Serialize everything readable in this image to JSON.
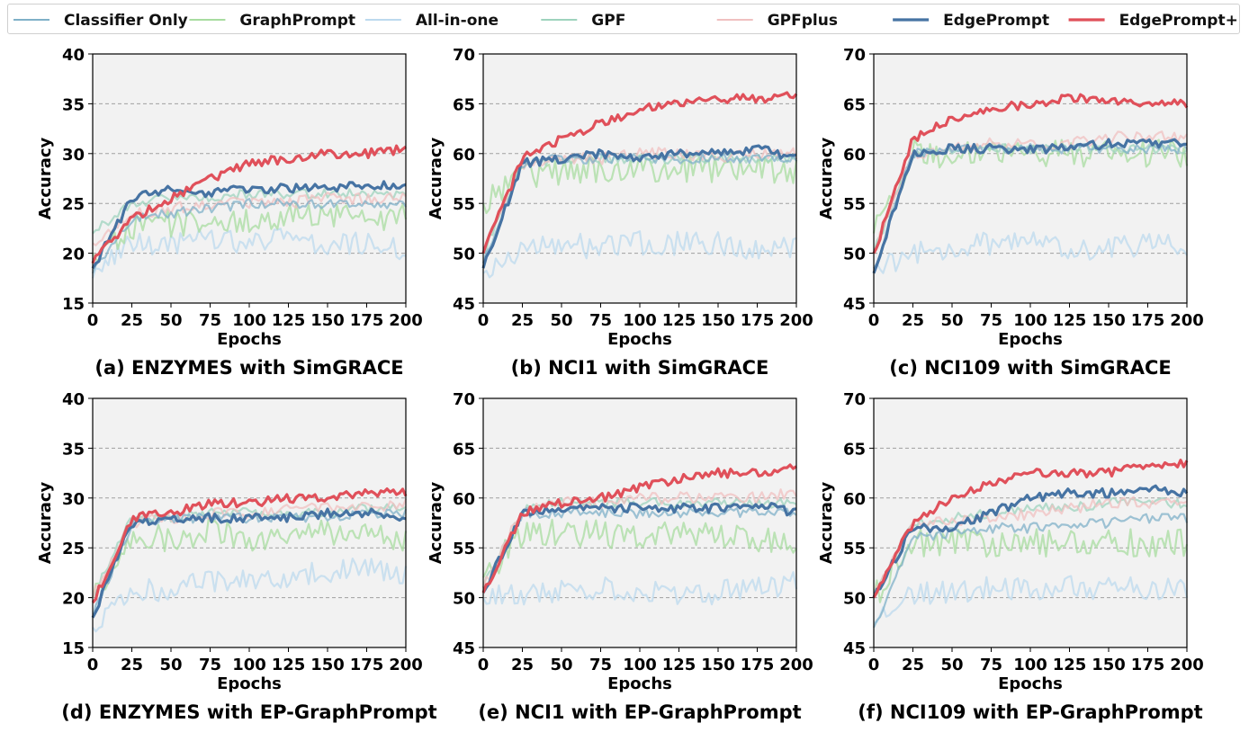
{
  "legend": [
    {
      "name": "Classifier Only",
      "color": "#7fb0c8"
    },
    {
      "name": "GraphPrompt",
      "color": "#a8dca0"
    },
    {
      "name": "All-in-one",
      "color": "#bcd9ee"
    },
    {
      "name": "GPF",
      "color": "#9ed3bd"
    },
    {
      "name": "GPFplus",
      "color": "#f0c0c0"
    },
    {
      "name": "EdgePrompt",
      "color": "#4673a3"
    },
    {
      "name": "EdgePrompt+",
      "color": "#e0505a"
    }
  ],
  "chart_data": [
    {
      "type": "line",
      "title": "(a) ENZYMES with SimGRACE",
      "xlabel": "Epochs",
      "ylabel": "Accuracy",
      "xlim": [
        0,
        200
      ],
      "ylim": [
        15,
        40
      ],
      "xticks": [
        0,
        25,
        50,
        75,
        100,
        125,
        150,
        175,
        200
      ],
      "yticks": [
        15,
        20,
        25,
        30,
        35,
        40
      ],
      "grid": "horizontal-dashed",
      "x": [
        0,
        25,
        50,
        75,
        100,
        125,
        150,
        175,
        200
      ],
      "series": [
        {
          "name": "Classifier Only",
          "values": [
            18,
            23.5,
            24,
            24.5,
            25,
            25,
            25,
            25,
            24.8
          ]
        },
        {
          "name": "GraphPrompt",
          "values": [
            20,
            22.5,
            23,
            23.5,
            23.5,
            23.8,
            24,
            23.8,
            23.5
          ]
        },
        {
          "name": "All-in-one",
          "values": [
            17.5,
            21,
            21,
            21.5,
            21,
            21.5,
            21,
            21,
            20.5
          ]
        },
        {
          "name": "GPF",
          "values": [
            22,
            25,
            25.5,
            25.5,
            26,
            26,
            26,
            26,
            26
          ]
        },
        {
          "name": "GPFplus",
          "values": [
            21,
            24,
            24.5,
            25,
            25,
            25,
            25.5,
            25.5,
            25.5
          ]
        },
        {
          "name": "EdgePrompt",
          "values": [
            18.5,
            25.5,
            26.5,
            26,
            26.5,
            26.5,
            26.5,
            27,
            26.5
          ]
        },
        {
          "name": "EdgePrompt+",
          "values": [
            19,
            23.5,
            25.5,
            27.5,
            29,
            29.5,
            30,
            30,
            30.5
          ]
        }
      ]
    },
    {
      "type": "line",
      "title": "(b) NCI1 with SimGRACE",
      "xlabel": "Epochs",
      "ylabel": "Accuracy",
      "xlim": [
        0,
        200
      ],
      "ylim": [
        45,
        70
      ],
      "xticks": [
        0,
        25,
        50,
        75,
        100,
        125,
        150,
        175,
        200
      ],
      "yticks": [
        45,
        50,
        55,
        60,
        65,
        70
      ],
      "grid": "horizontal-dashed",
      "x": [
        0,
        25,
        50,
        75,
        100,
        125,
        150,
        175,
        200
      ],
      "series": [
        {
          "name": "Classifier Only",
          "values": [
            49,
            59,
            59.5,
            59.5,
            59.5,
            59.5,
            59.5,
            59.5,
            59.5
          ]
        },
        {
          "name": "GraphPrompt",
          "values": [
            55,
            58,
            58,
            58.5,
            58.5,
            58.5,
            58.5,
            58.5,
            58
          ]
        },
        {
          "name": "All-in-one",
          "values": [
            48,
            50.5,
            51,
            50.5,
            51,
            51,
            51,
            50.5,
            50.5
          ]
        },
        {
          "name": "GPF",
          "values": [
            50,
            59,
            59.5,
            59.5,
            59.5,
            59.5,
            59.5,
            59.5,
            59.5
          ]
        },
        {
          "name": "GPFplus",
          "values": [
            50,
            59,
            59.5,
            59.5,
            60,
            60,
            59.5,
            60,
            60
          ]
        },
        {
          "name": "EdgePrompt",
          "values": [
            48.5,
            59,
            59.5,
            60,
            59.5,
            60,
            60,
            60.5,
            59.5
          ]
        },
        {
          "name": "EdgePrompt+",
          "values": [
            50,
            59.5,
            61.5,
            63,
            64.5,
            65,
            65.5,
            65.5,
            65.8
          ]
        }
      ]
    },
    {
      "type": "line",
      "title": "(c) NCI109 with SimGRACE",
      "xlabel": "Epochs",
      "ylabel": "Accuracy",
      "xlim": [
        0,
        200
      ],
      "ylim": [
        45,
        70
      ],
      "xticks": [
        0,
        25,
        50,
        75,
        100,
        125,
        150,
        175,
        200
      ],
      "yticks": [
        45,
        50,
        55,
        60,
        65,
        70
      ],
      "grid": "horizontal-dashed",
      "x": [
        0,
        25,
        50,
        75,
        100,
        125,
        150,
        175,
        200
      ],
      "series": [
        {
          "name": "Classifier Only",
          "values": [
            48.5,
            60,
            60.5,
            60.5,
            60.5,
            60.5,
            60.5,
            60.5,
            60.5
          ]
        },
        {
          "name": "GraphPrompt",
          "values": [
            52,
            60,
            60,
            60,
            60,
            60,
            60,
            60,
            60
          ]
        },
        {
          "name": "All-in-one",
          "values": [
            48,
            50,
            50.5,
            51,
            51,
            50.5,
            50.5,
            51,
            50.5
          ]
        },
        {
          "name": "GPF",
          "values": [
            50,
            60,
            60,
            60.5,
            60.5,
            60.5,
            60.5,
            60.5,
            60.5
          ]
        },
        {
          "name": "GPFplus",
          "values": [
            50,
            60,
            60.5,
            61,
            61,
            61,
            61.5,
            62,
            61.5
          ]
        },
        {
          "name": "EdgePrompt",
          "values": [
            48,
            60,
            60.5,
            60.5,
            60.5,
            60.5,
            61,
            61,
            61
          ]
        },
        {
          "name": "EdgePrompt+",
          "values": [
            50,
            61.5,
            63.5,
            64.5,
            65,
            65.5,
            65.5,
            65,
            65
          ]
        }
      ]
    },
    {
      "type": "line",
      "title": "(d) ENZYMES with EP-GraphPrompt",
      "xlabel": "Epochs",
      "ylabel": "Accuracy",
      "xlim": [
        0,
        200
      ],
      "ylim": [
        15,
        40
      ],
      "xticks": [
        0,
        25,
        50,
        75,
        100,
        125,
        150,
        175,
        200
      ],
      "yticks": [
        15,
        20,
        25,
        30,
        35,
        40
      ],
      "grid": "horizontal-dashed",
      "x": [
        0,
        25,
        50,
        75,
        100,
        125,
        150,
        175,
        200
      ],
      "series": [
        {
          "name": "Classifier Only",
          "values": [
            18,
            27.5,
            28,
            28,
            28,
            28,
            28,
            28.5,
            28.5
          ]
        },
        {
          "name": "GraphPrompt",
          "values": [
            20,
            26,
            26,
            26.5,
            26,
            26.5,
            26.5,
            26.5,
            26
          ]
        },
        {
          "name": "All-in-one",
          "values": [
            17,
            20.5,
            21,
            21.5,
            22,
            22,
            22.5,
            23,
            22.5
          ]
        },
        {
          "name": "GPF",
          "values": [
            20,
            28,
            28,
            28.5,
            28.5,
            28.5,
            28.5,
            29,
            29
          ]
        },
        {
          "name": "GPFplus",
          "values": [
            20,
            27.5,
            28,
            28.5,
            28.5,
            29,
            29,
            29,
            29.5
          ]
        },
        {
          "name": "EdgePrompt",
          "values": [
            18,
            27.5,
            28,
            28,
            28,
            28,
            28.5,
            28.5,
            28
          ]
        },
        {
          "name": "EdgePrompt+",
          "values": [
            19.5,
            28,
            28.5,
            29.5,
            29.5,
            30,
            30,
            30.5,
            30.5
          ]
        }
      ]
    },
    {
      "type": "line",
      "title": "(e) NCI1 with EP-GraphPrompt",
      "xlabel": "Epochs",
      "ylabel": "Accuracy",
      "xlim": [
        0,
        200
      ],
      "ylim": [
        45,
        70
      ],
      "xticks": [
        0,
        25,
        50,
        75,
        100,
        125,
        150,
        175,
        200
      ],
      "yticks": [
        45,
        50,
        55,
        60,
        65,
        70
      ],
      "grid": "horizontal-dashed",
      "x": [
        0,
        25,
        50,
        75,
        100,
        125,
        150,
        175,
        200
      ],
      "series": [
        {
          "name": "Classifier Only",
          "values": [
            50.5,
            58.5,
            58.5,
            58.5,
            58.5,
            58.5,
            58.5,
            58.5,
            58.5
          ]
        },
        {
          "name": "GraphPrompt",
          "values": [
            52,
            56.5,
            56.5,
            56.5,
            56,
            56.5,
            56,
            56,
            55.5
          ]
        },
        {
          "name": "All-in-one",
          "values": [
            50,
            50.5,
            50.5,
            51,
            50.5,
            50.5,
            50.5,
            51,
            51.5
          ]
        },
        {
          "name": "GPF",
          "values": [
            51,
            59,
            59.5,
            59.5,
            59.5,
            59.5,
            59.5,
            59.5,
            59.5
          ]
        },
        {
          "name": "GPFplus",
          "values": [
            51,
            59,
            59.5,
            59.5,
            60,
            60,
            60,
            60,
            60.5
          ]
        },
        {
          "name": "EdgePrompt",
          "values": [
            50.5,
            58.5,
            59,
            59,
            59,
            59,
            59,
            59.5,
            58.5
          ]
        },
        {
          "name": "EdgePrompt+",
          "values": [
            50.5,
            58.5,
            59.5,
            60,
            61,
            62,
            62.5,
            62.5,
            63
          ]
        }
      ]
    },
    {
      "type": "line",
      "title": "(f) NCI109 with EP-GraphPrompt",
      "xlabel": "Epochs",
      "ylabel": "Accuracy",
      "xlim": [
        0,
        200
      ],
      "ylim": [
        45,
        70
      ],
      "xticks": [
        0,
        25,
        50,
        75,
        100,
        125,
        150,
        175,
        200
      ],
      "yticks": [
        45,
        50,
        55,
        60,
        65,
        70
      ],
      "grid": "horizontal-dashed",
      "x": [
        0,
        25,
        50,
        75,
        100,
        125,
        150,
        175,
        200
      ],
      "series": [
        {
          "name": "Classifier Only",
          "values": [
            47,
            56,
            56.5,
            57,
            57,
            57.5,
            57.5,
            58,
            58
          ]
        },
        {
          "name": "GraphPrompt",
          "values": [
            50,
            55.5,
            55.5,
            55.5,
            55.5,
            55.5,
            55.5,
            55.5,
            55.5
          ]
        },
        {
          "name": "All-in-one",
          "values": [
            47.5,
            50.5,
            50.5,
            51,
            51,
            51,
            51,
            51,
            51
          ]
        },
        {
          "name": "GPF",
          "values": [
            50,
            57.5,
            58,
            58.5,
            59,
            59,
            59.5,
            59.5,
            59.5
          ]
        },
        {
          "name": "GPFplus",
          "values": [
            50,
            57.5,
            57.5,
            58,
            58.5,
            59,
            59.5,
            59.5,
            60
          ]
        },
        {
          "name": "EdgePrompt",
          "values": [
            50,
            57,
            57,
            58.5,
            60,
            60.5,
            60.5,
            61,
            60.5
          ]
        },
        {
          "name": "EdgePrompt+",
          "values": [
            50,
            57.5,
            60,
            61.5,
            62.5,
            62.5,
            62.5,
            63.5,
            63.5
          ]
        }
      ]
    }
  ]
}
